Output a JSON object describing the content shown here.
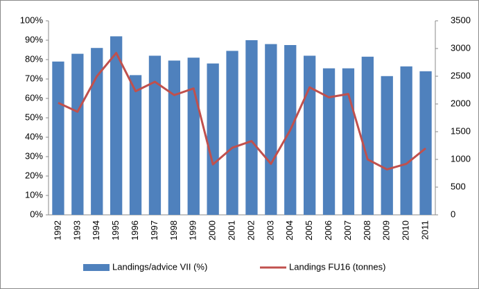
{
  "chart_data": {
    "type": "bar",
    "categories": [
      "1992",
      "1993",
      "1994",
      "1995",
      "1996",
      "1997",
      "1998",
      "1999",
      "2000",
      "2001",
      "2002",
      "2003",
      "2004",
      "2005",
      "2006",
      "2007",
      "2008",
      "2009",
      "2010",
      "2011"
    ],
    "series": [
      {
        "name": "Landings/advice VII (%)",
        "type": "bar",
        "color": "#4f81bd",
        "values": [
          79,
          83,
          86,
          92,
          72,
          82,
          79.5,
          81,
          78,
          84.5,
          90,
          88,
          87.5,
          82,
          75.5,
          75.5,
          81.5,
          71.5,
          76.5,
          74
        ]
      },
      {
        "name": "Landings FU16 (tonnes)",
        "type": "line",
        "color": "#c0504d",
        "axis": "y2",
        "values": [
          2020,
          1860,
          2500,
          2920,
          2230,
          2400,
          2160,
          2280,
          910,
          1210,
          1330,
          920,
          1530,
          2300,
          2120,
          2180,
          1000,
          820,
          920,
          1200
        ]
      }
    ],
    "ylim": [
      0,
      100
    ],
    "yticks": [
      {
        "value": 0,
        "label": "0%"
      },
      {
        "value": 10,
        "label": "10%"
      },
      {
        "value": 20,
        "label": "20%"
      },
      {
        "value": 30,
        "label": "30%"
      },
      {
        "value": 40,
        "label": "40%"
      },
      {
        "value": 50,
        "label": "50%"
      },
      {
        "value": 60,
        "label": "60%"
      },
      {
        "value": 70,
        "label": "70%"
      },
      {
        "value": 80,
        "label": "80%"
      },
      {
        "value": 90,
        "label": "90%"
      },
      {
        "value": 100,
        "label": "100%"
      }
    ],
    "y2lim": [
      0,
      3500
    ],
    "y2ticks": [
      0,
      500,
      1000,
      1500,
      2000,
      2500,
      3000,
      3500
    ],
    "legend": "bottom"
  }
}
